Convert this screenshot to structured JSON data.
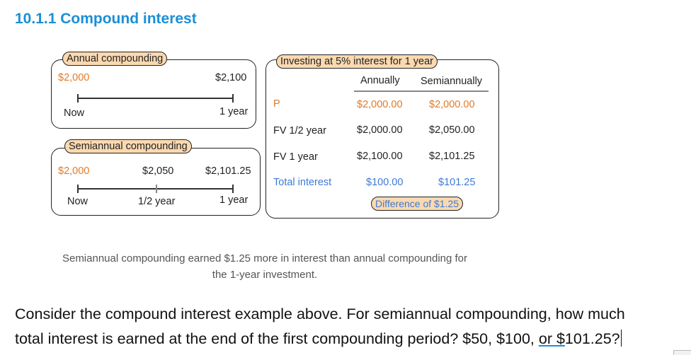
{
  "heading": "10.1.1 Compound interest",
  "annual": {
    "tag": "Annual compounding",
    "start_amount": "$2,000",
    "end_amount": "$2,100",
    "start_label": "Now",
    "end_label": "1 year"
  },
  "semiannual": {
    "tag": "Semiannual compounding",
    "start_amount": "$2,000",
    "mid_amount": "$2,050",
    "end_amount": "$2,101.25",
    "start_label": "Now",
    "mid_label": "1/2 year",
    "end_label": "1 year"
  },
  "table": {
    "tag": "Investing at 5% interest for 1 year",
    "col_annually": "Annually",
    "col_semiannually": "Semiannually",
    "rows": [
      {
        "label": "P",
        "annually": "$2,000.00",
        "semiannually": "$2,000.00"
      },
      {
        "label": "FV 1/2 year",
        "annually": "$2,000.00",
        "semiannually": "$2,050.00"
      },
      {
        "label": "FV 1 year",
        "annually": "$2,100.00",
        "semiannually": "$2,101.25"
      },
      {
        "label": "Total interest",
        "annually": "$100.00",
        "semiannually": "$101.25"
      }
    ],
    "difference": "Difference of $1.25"
  },
  "caption_line1": "Semiannual compounding earned $1.25 more in interest than annual compounding for",
  "caption_line2": "the 1-year investment.",
  "question_line1": "Consider the compound interest example above. For semiannual compounding, how much",
  "question_line2_a": "total interest is earned at the end of the first compounding period? $50, $100, ",
  "question_line2_b": "or $",
  "question_line2_c": "101.25?",
  "colors": {
    "heading": "#1a8fd6",
    "tag_fill": "#fbd9b0",
    "amount_orange": "#e07a2a",
    "total_blue": "#3d7ad6"
  }
}
